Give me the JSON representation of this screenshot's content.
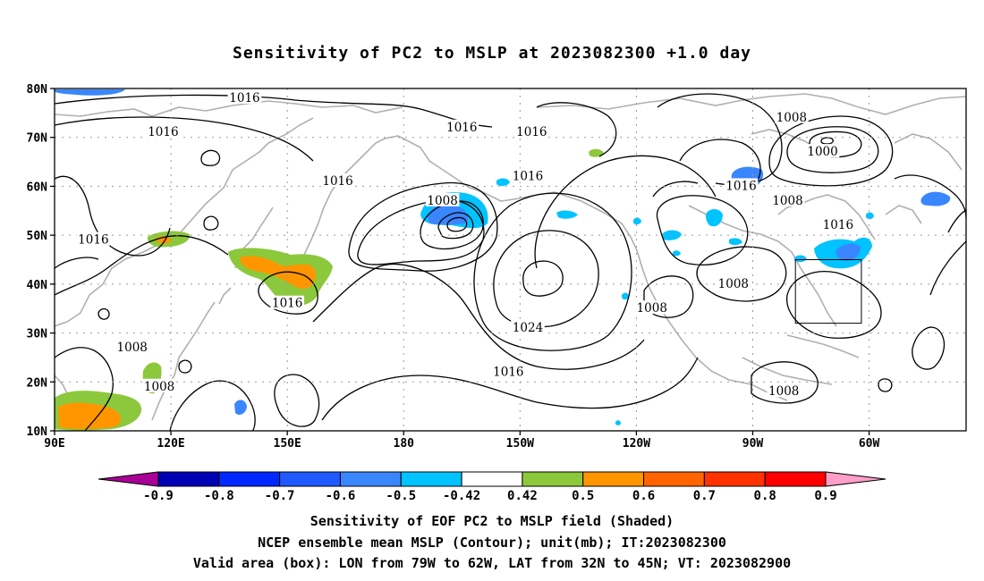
{
  "title": "Sensitivity of PC2 to MSLP at 2023082300 +1.0 day",
  "map": {
    "lon_min": 90,
    "lon_max": 325,
    "lat_min": 10,
    "lat_max": 80,
    "lat_ticks": [
      {
        "lat": 80,
        "label": "80N"
      },
      {
        "lat": 70,
        "label": "70N"
      },
      {
        "lat": 60,
        "label": "60N"
      },
      {
        "lat": 50,
        "label": "50N"
      },
      {
        "lat": 40,
        "label": "40N"
      },
      {
        "lat": 30,
        "label": "30N"
      },
      {
        "lat": 20,
        "label": "20N"
      },
      {
        "lat": 10,
        "label": "10N"
      }
    ],
    "lon_ticks": [
      {
        "lon": 90,
        "label": "90E"
      },
      {
        "lon": 120,
        "label": "120E"
      },
      {
        "lon": 150,
        "label": "150E"
      },
      {
        "lon": 180,
        "label": "180"
      },
      {
        "lon": 210,
        "label": "150W"
      },
      {
        "lon": 240,
        "label": "120W"
      },
      {
        "lon": 270,
        "label": "90W"
      },
      {
        "lon": 300,
        "label": "60W"
      }
    ],
    "valid_box": {
      "lon_west": 281,
      "lon_east": 298,
      "lat_south": 32,
      "lat_north": 45
    },
    "contour_labels": [
      {
        "text": "1016",
        "lon": 139,
        "lat": 78
      },
      {
        "text": "1016",
        "lon": 118,
        "lat": 71
      },
      {
        "text": "1016",
        "lon": 100,
        "lat": 49
      },
      {
        "text": "1016",
        "lon": 150,
        "lat": 36
      },
      {
        "text": "1016",
        "lon": 163,
        "lat": 61
      },
      {
        "text": "1016",
        "lon": 195,
        "lat": 72
      },
      {
        "text": "1016",
        "lon": 213,
        "lat": 71
      },
      {
        "text": "1016",
        "lon": 212,
        "lat": 62
      },
      {
        "text": "1016",
        "lon": 207,
        "lat": 22
      },
      {
        "text": "1016",
        "lon": 267,
        "lat": 60
      },
      {
        "text": "1016",
        "lon": 292,
        "lat": 52
      },
      {
        "text": "1008",
        "lon": 190,
        "lat": 57
      },
      {
        "text": "1008",
        "lon": 280,
        "lat": 74
      },
      {
        "text": "1008",
        "lon": 279,
        "lat": 57
      },
      {
        "text": "1008",
        "lon": 265,
        "lat": 40
      },
      {
        "text": "1008",
        "lon": 244,
        "lat": 35
      },
      {
        "text": "1008",
        "lon": 110,
        "lat": 27
      },
      {
        "text": "1008",
        "lon": 117,
        "lat": 19
      },
      {
        "text": "1008",
        "lon": 278,
        "lat": 18
      },
      {
        "text": "1000",
        "lon": 288,
        "lat": 67
      },
      {
        "text": "1024",
        "lon": 212,
        "lat": 31
      }
    ]
  },
  "colorbar": {
    "colors": [
      "#a80096",
      "#0000b4",
      "#0028ff",
      "#1e5aff",
      "#3a86ff",
      "#00c3ff",
      "#ffffff",
      "#8cc83c",
      "#ff9600",
      "#ff6400",
      "#ff3200",
      "#ff0000",
      "#ff9ec8"
    ],
    "labels": [
      "-0.9",
      "-0.8",
      "-0.7",
      "-0.6",
      "-0.5",
      "-0.42",
      "0.42",
      "0.5",
      "0.6",
      "0.7",
      "0.8",
      "0.9"
    ]
  },
  "captions": [
    "Sensitivity of EOF PC2 to MSLP field (Shaded)",
    "NCEP ensemble mean MSLP (Contour); unit(mb); IT:2023082300",
    "Valid area (box): LON from 79W to 62W, LAT from 32N to 45N; VT: 2023082900"
  ]
}
